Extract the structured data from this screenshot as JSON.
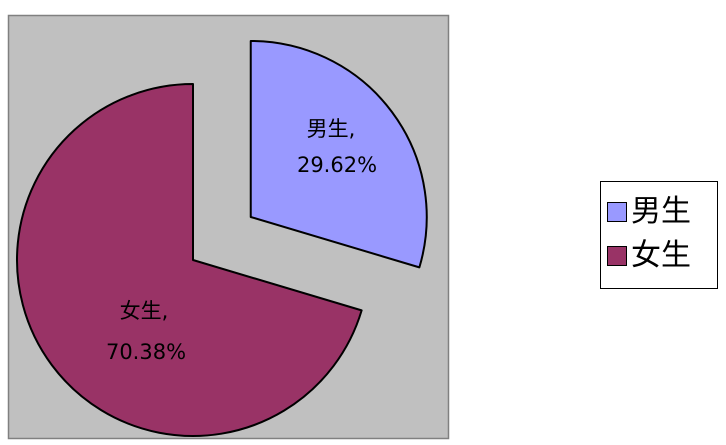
{
  "chart_data": {
    "type": "pie",
    "title": "",
    "categories": [
      "男生",
      "女生"
    ],
    "values": [
      29.62,
      70.38
    ],
    "unit": "%",
    "colors": [
      "#9999ff",
      "#993366"
    ],
    "exploded": [
      true,
      false
    ],
    "slice_labels": [
      {
        "name": "男生,",
        "value": "29.62%"
      },
      {
        "name": "女生,",
        "value": "70.38%"
      }
    ],
    "legend": {
      "placement": "right",
      "entries": [
        {
          "label": "男生",
          "color": "#9999ff"
        },
        {
          "label": "女生",
          "color": "#993366"
        }
      ]
    },
    "plot_area_color": "#c0c0c0"
  }
}
